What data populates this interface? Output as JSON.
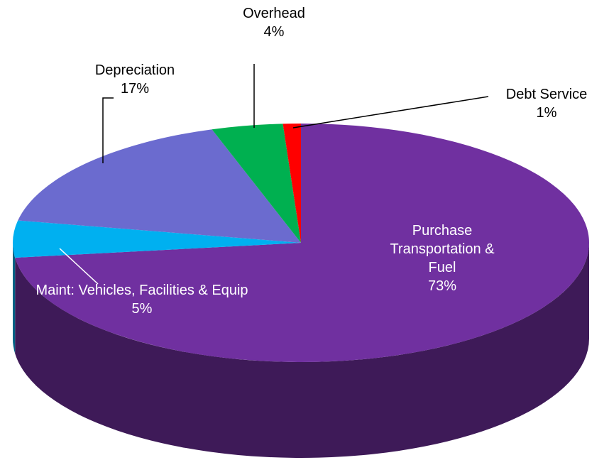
{
  "chart_data": {
    "type": "pie",
    "categories": [
      "Purchase Transportation & Fuel",
      "Maint: Vehicles, Facilities & Equip",
      "Depreciation",
      "Overhead",
      "Debt Service"
    ],
    "values": [
      73,
      5,
      17,
      4,
      1
    ],
    "value_labels": [
      "73%",
      "5%",
      "17%",
      "4%",
      "1%"
    ],
    "colors": [
      "#7030a0",
      "#00b0f0",
      "#6b6bcf",
      "#00b050",
      "#ff0000"
    ]
  }
}
